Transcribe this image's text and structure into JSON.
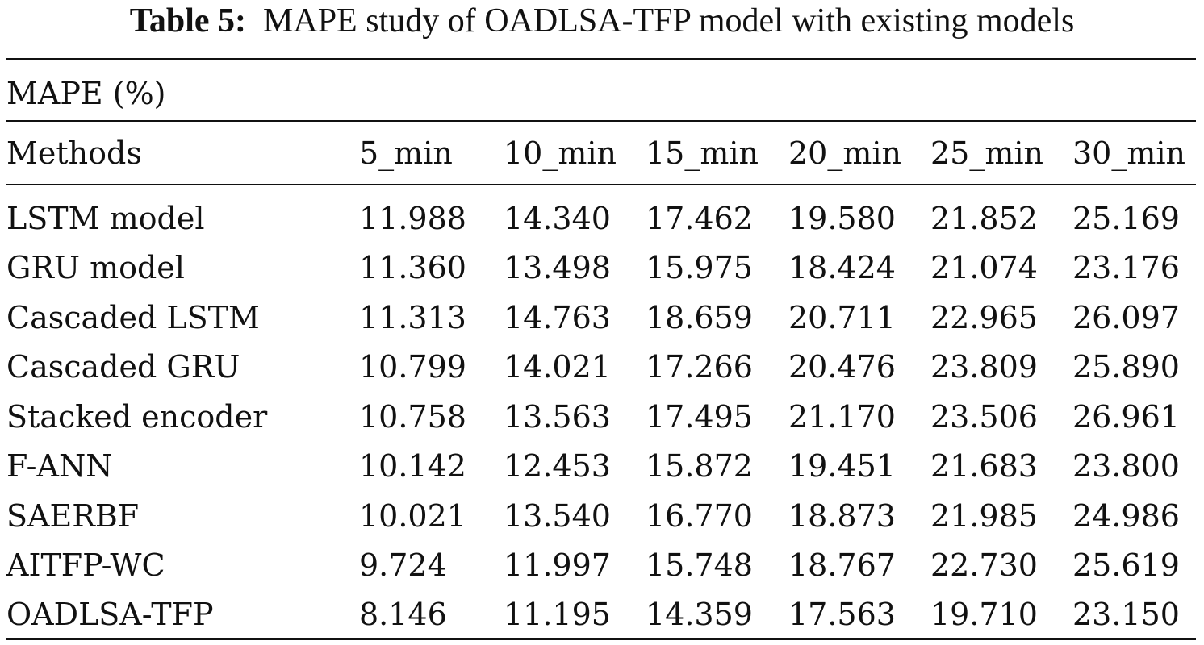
{
  "caption": {
    "label": "Table 5:",
    "text": "MAPE study of OADLSA-TFP model with existing models"
  },
  "table": {
    "metric": "MAPE (%)",
    "methods_header": "Methods",
    "columns": [
      "5_min",
      "10_min",
      "15_min",
      "20_min",
      "25_min",
      "30_min"
    ],
    "rows": [
      {
        "method": "LSTM model",
        "values": [
          "11.988",
          "14.340",
          "17.462",
          "19.580",
          "21.852",
          "25.169"
        ]
      },
      {
        "method": "GRU model",
        "values": [
          "11.360",
          "13.498",
          "15.975",
          "18.424",
          "21.074",
          "23.176"
        ]
      },
      {
        "method": "Cascaded LSTM",
        "values": [
          "11.313",
          "14.763",
          "18.659",
          "20.711",
          "22.965",
          "26.097"
        ]
      },
      {
        "method": "Cascaded GRU",
        "values": [
          "10.799",
          "14.021",
          "17.266",
          "20.476",
          "23.809",
          "25.890"
        ]
      },
      {
        "method": "Stacked encoder",
        "values": [
          "10.758",
          "13.563",
          "17.495",
          "21.170",
          "23.506",
          "26.961"
        ]
      },
      {
        "method": "F-ANN",
        "values": [
          "10.142",
          "12.453",
          "15.872",
          "19.451",
          "21.683",
          "23.800"
        ]
      },
      {
        "method": "SAERBF",
        "values": [
          "10.021",
          "13.540",
          "16.770",
          "18.873",
          "21.985",
          "24.986"
        ]
      },
      {
        "method": "AITFP-WC",
        "values": [
          "9.724",
          "11.997",
          "15.748",
          "18.767",
          "22.730",
          "25.619"
        ]
      },
      {
        "method": "OADLSA-TFP",
        "values": [
          "8.146",
          "11.195",
          "14.359",
          "17.563",
          "19.710",
          "23.150"
        ]
      }
    ]
  }
}
